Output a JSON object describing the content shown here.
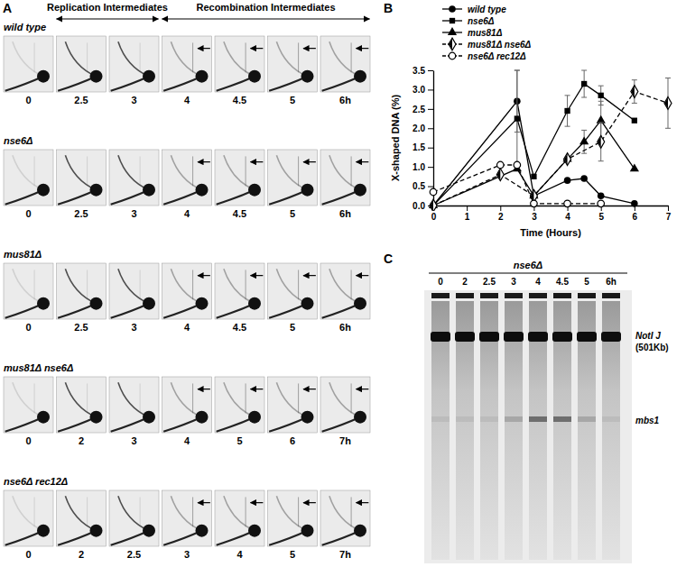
{
  "panel_labels": [
    "A",
    "B",
    "C"
  ],
  "panel_a": {
    "headers": [
      "Replication Intermediates",
      "Recombination Intermediates"
    ],
    "rows": [
      {
        "genotype": "wild type",
        "times": [
          "0",
          "2.5",
          "3",
          "4",
          "4.5",
          "5",
          "6h"
        ]
      },
      {
        "genotype": "nse6Δ",
        "times": [
          "0",
          "2.5",
          "3",
          "4",
          "4.5",
          "5",
          "6h"
        ]
      },
      {
        "genotype": "mus81Δ",
        "times": [
          "0",
          "2.5",
          "3",
          "4",
          "4.5",
          "5",
          "6h"
        ]
      },
      {
        "genotype": "mus81Δ nse6Δ",
        "times": [
          "0",
          "2",
          "3",
          "4",
          "5",
          "6",
          "7h"
        ]
      },
      {
        "genotype": "nse6Δ rec12Δ",
        "times": [
          "0",
          "2",
          "2.5",
          "3",
          "4",
          "5",
          "7h"
        ]
      }
    ]
  },
  "chart_data": {
    "type": "line",
    "x_label": "Time (Hours)",
    "y_label": "X-shaped DNA (%)",
    "xlim": [
      0,
      7
    ],
    "xticks": [
      0,
      1,
      2,
      3,
      4,
      5,
      6,
      7
    ],
    "ylim": [
      0,
      3.5
    ],
    "yticks": [
      {
        "value": 0,
        "label": "0.0"
      },
      0.5,
      {
        "value": 1,
        "label": "1.0"
      },
      1.5,
      {
        "value": 2,
        "label": "2.0"
      },
      2.5,
      {
        "value": 3,
        "label": "3.0"
      },
      3.5
    ],
    "grid": false,
    "legend": "upper left",
    "series": [
      {
        "name": "wild type",
        "color": "#000000",
        "marker": "circle",
        "line_style": "solid",
        "x": [
          0,
          2.5,
          3,
          4,
          4.5,
          5,
          6
        ],
        "values": [
          0,
          2.7,
          0.25,
          0.65,
          0.7,
          0.25,
          0.05
        ],
        "errors": [
          null,
          0.8,
          null,
          null,
          null,
          null,
          null
        ]
      },
      {
        "name": "nse6Δ",
        "color": "#000000",
        "marker": "square",
        "line_style": "solid",
        "x": [
          0,
          2.5,
          3,
          4,
          4.5,
          5,
          6
        ],
        "values": [
          0,
          2.25,
          0.75,
          2.45,
          3.15,
          2.85,
          2.2
        ],
        "errors": [
          null,
          1.25,
          null,
          0.4,
          0.35,
          0.25,
          null
        ]
      },
      {
        "name": "mus81Δ",
        "color": "#000000",
        "marker": "triangle",
        "line_style": "solid",
        "x": [
          0,
          2.5,
          3,
          4,
          4.5,
          5,
          6
        ],
        "values": [
          0,
          0.95,
          0.25,
          1.2,
          1.65,
          2.2,
          0.95
        ],
        "errors": [
          null,
          null,
          null,
          null,
          0.3,
          0.5,
          null
        ]
      },
      {
        "name": "mus81Δ nse6Δ",
        "color": "#000000",
        "marker": "diamond",
        "line_style": "dashed",
        "x": [
          0,
          2,
          3,
          4,
          5,
          6,
          7
        ],
        "values": [
          0,
          0.8,
          0.25,
          1.2,
          1.65,
          2.95,
          2.65
        ],
        "errors": [
          null,
          null,
          null,
          null,
          0.5,
          0.3,
          0.65
        ]
      },
      {
        "name": "nse6Δ rec12Δ",
        "color": "#000000",
        "marker": "circle-open",
        "line_style": "dashed",
        "x": [
          0,
          2,
          2.5,
          3,
          4,
          5
        ],
        "values": [
          0.35,
          1.05,
          1.05,
          0.05,
          0.05,
          0.05
        ],
        "errors": [
          null,
          null,
          null,
          null,
          null,
          null
        ]
      }
    ]
  },
  "panel_c": {
    "title": "nse6Δ",
    "lanes": [
      "0",
      "2",
      "2.5",
      "3",
      "4",
      "4.5",
      "5",
      "6h"
    ],
    "bands": [
      "NotI J",
      "(501Kb)",
      "mbs1"
    ]
  }
}
